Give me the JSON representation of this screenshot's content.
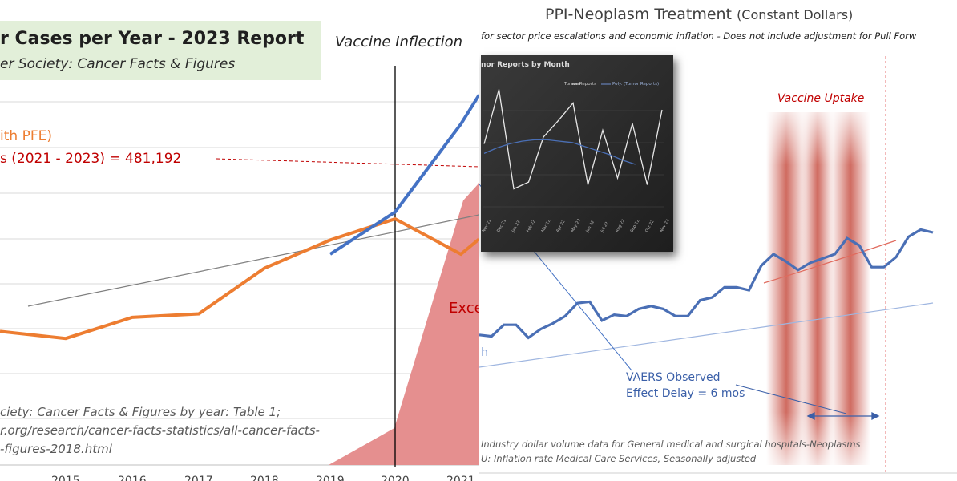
{
  "left": {
    "title": "r Cases per Year - 2023 Report",
    "subtitle": "er Society: Cancer Facts & Figures",
    "vaccine_inflection": "Vaccine Inflection",
    "pfe_label": "ith PFE)",
    "excess_label": "s (2021 - 2023)  = 481,192",
    "exce_label": "Exce",
    "source_lines": [
      "ciety:  Cancer Facts & Figures by year: Table  1;",
      "r.org/research/cancer-facts-statistics/all-cancer-facts-",
      "-figures-2018.html"
    ],
    "colors": {
      "blue": "#4472c4",
      "orange": "#ed7d31",
      "red": "#c00000",
      "area": "#e07b7b"
    }
  },
  "right": {
    "title_main": "PPI-Neoplasm  Treatment",
    "title_sub": "(Constant Dollars)",
    "subtitle": "for sector price escalations and economic inflation - Does not include adjustment  for Pull Forw",
    "vaccine_uptake": "Vaccine Uptake",
    "vaers_line1": "VAERS Observed",
    "vaers_line2": "Effect Delay = 6 mos",
    "h_label": "h",
    "footnotes": [
      "Industry dollar volume data for General medical and surgical hospitals-Neoplasms",
      "U: Inflation rate Medical Care Services, Seasonally adjusted"
    ],
    "inset": {
      "title": "nor  Reports  by Month",
      "legend": [
        "Tumor Reports",
        "Poly. (Tumor Reports)"
      ],
      "months": [
        "Nov 21",
        "Dec 21",
        "Jan 22",
        "Feb 22",
        "Mar 22",
        "Apr 22",
        "May 22",
        "Jun 22",
        "Jul 22",
        "Aug 22",
        "Sep 22",
        "Oct 22",
        "Nov 22"
      ]
    }
  },
  "chart_data": [
    {
      "type": "line",
      "title": "r Cases per Year - 2023 Report",
      "x": [
        "",
        "2015",
        "2016",
        "2017",
        "2018",
        "2019",
        "2020",
        "2021"
      ],
      "series": [
        {
          "values": [
            null,
            null,
            null,
            null,
            null,
            0.6,
            0.72,
            0.97
          ]
        },
        {
          "values": [
            0.38,
            0.36,
            0.42,
            0.43,
            0.56,
            0.64,
            0.7,
            0.6
          ]
        }
      ],
      "ylim": [
        0,
        1
      ]
    },
    {
      "type": "line",
      "title": "PPI-Neoplasm  Treatment (Constant Dollars)",
      "series": [
        {
          "values": [
            0.29,
            0.28,
            0.36,
            0.36,
            0.27,
            0.33,
            0.37,
            0.42,
            0.51,
            0.52,
            0.39,
            0.43,
            0.42,
            0.47,
            0.49,
            0.47,
            0.42,
            0.42,
            0.53,
            0.55,
            0.62,
            0.62,
            0.6,
            0.77,
            0.85,
            0.8,
            0.74,
            0.79,
            0.82,
            0.85,
            0.96,
            0.91,
            0.76,
            0.76,
            0.83,
            0.97,
            1.02,
            1.0
          ]
        }
      ],
      "ylim": [
        0,
        1.2
      ]
    },
    {
      "type": "line",
      "title": "nor  Reports  by Month",
      "x": [
        "Nov 21",
        "Dec 21",
        "Jan 22",
        "Feb 22",
        "Mar 22",
        "Apr 22",
        "May 22",
        "Jun 22",
        "Jul 22",
        "Aug 22",
        "Sep 22",
        "Oct 22",
        "Nov 22"
      ],
      "series": [
        {
          "name": "Tumor Reports",
          "values": [
            0.55,
            0.95,
            0.22,
            0.27,
            0.6,
            0.72,
            0.85,
            0.25,
            0.65,
            0.3,
            0.7,
            0.25,
            0.8
          ]
        },
        {
          "name": "Poly. (Tumor Reports)",
          "values": [
            0.48,
            0.52,
            0.55,
            0.57,
            0.58,
            0.58,
            0.57,
            0.56,
            0.53,
            0.5,
            0.47,
            0.43,
            0.4
          ]
        }
      ]
    }
  ]
}
